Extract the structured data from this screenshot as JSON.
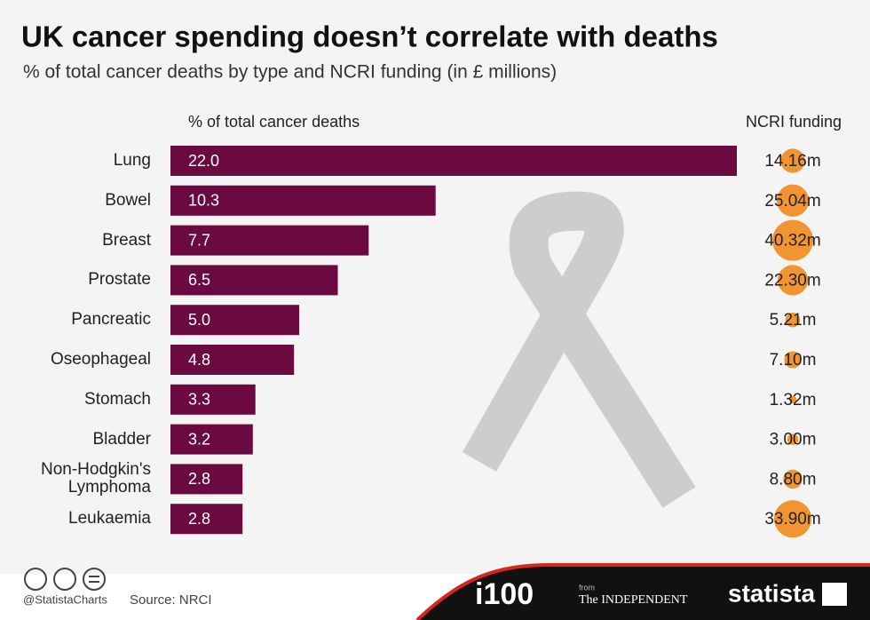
{
  "chart_data": {
    "type": "bar",
    "title": "UK cancer spending doesn’t correlate with deaths",
    "subtitle": "% of total cancer deaths by type and NCRI funding (in £ millions)",
    "bar_header": "% of total cancer deaths",
    "categories": [
      "Lung",
      "Bowel",
      "Breast",
      "Prostate",
      "Pancreatic",
      "Oseophageal",
      "Stomach",
      "Bladder",
      "Non-Hodgkin's Lymphoma",
      "Leukaemia"
    ],
    "values": [
      22.0,
      10.3,
      7.7,
      6.5,
      5.0,
      4.8,
      3.3,
      3.2,
      2.8,
      2.8
    ],
    "value_labels": [
      "22.0",
      "10.3",
      "7.7",
      "6.5",
      "5.0",
      "4.8",
      "3.3",
      "3.2",
      "2.8",
      "2.8"
    ],
    "color": "#6a0a41",
    "funding": {
      "title": "NCRI funding",
      "values": [
        14.16,
        25.04,
        40.32,
        22.3,
        5.21,
        7.1,
        1.32,
        3.0,
        8.8,
        33.9
      ],
      "value_labels": [
        "14.16m",
        "25.04m",
        "40.32m",
        "22.30m",
        "5.21m",
        "7.10m",
        "1.32m",
        "3.00m",
        "8.80m",
        "33.90m"
      ],
      "color": "#f39433"
    }
  },
  "footer": {
    "handle": "@StatistaCharts",
    "source": "Source: NRCI",
    "brand_i100": "i100",
    "brand_from": "from",
    "brand_independent": "The INDEPENDENT",
    "brand_statista": "statista"
  }
}
